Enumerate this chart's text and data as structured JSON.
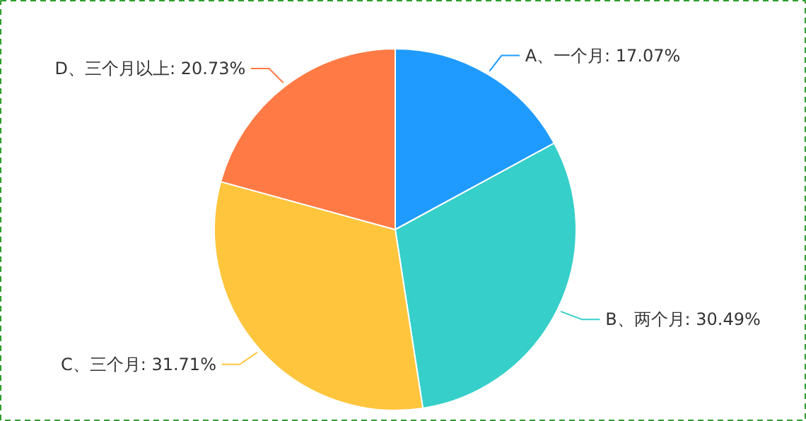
{
  "chart_data": {
    "type": "pie",
    "categories": [
      "A、一个月",
      "B、两个月",
      "C、三个月",
      "D、三个月以上"
    ],
    "values": [
      17.07,
      30.49,
      31.71,
      20.73
    ],
    "colors": [
      "#1f9bff",
      "#36cfc9",
      "#ffc53d",
      "#ff7a45"
    ],
    "value_labels": [
      "17.07%",
      "30.49%",
      "31.71%",
      "20.73%"
    ]
  }
}
